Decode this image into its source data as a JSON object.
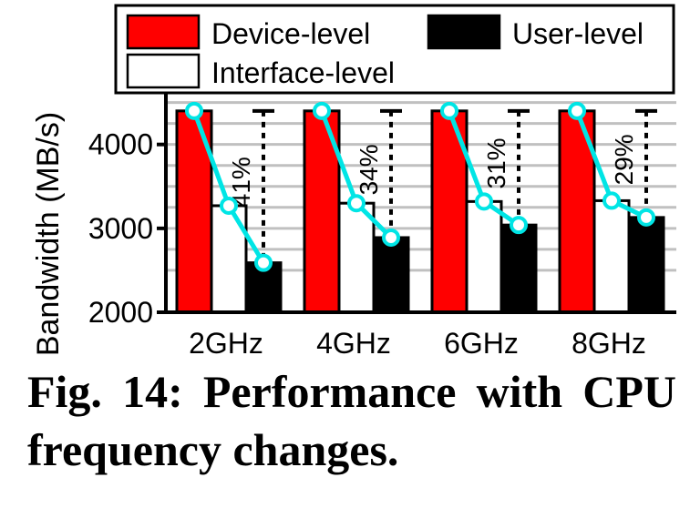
{
  "chart_data": {
    "type": "bar",
    "categories": [
      "2GHz",
      "4GHz",
      "6GHz",
      "8GHz"
    ],
    "series": [
      {
        "name": "Device-level",
        "values": [
          4400,
          4400,
          4400,
          4400
        ],
        "color": "#ff0000"
      },
      {
        "name": "Interface-level",
        "values": [
          3270,
          3300,
          3320,
          3330
        ],
        "color": "#ffffff"
      },
      {
        "name": "User-level",
        "values": [
          2590,
          2890,
          3040,
          3130
        ],
        "color": "#000000"
      }
    ],
    "line_color": "#00e5e5",
    "annotations": [
      "41%",
      "34%",
      "31%",
      "29%"
    ],
    "ylabel": "Bandwidth (MB/s)",
    "yticks": [
      2000,
      3000,
      4000
    ],
    "ylim": [
      2000,
      4550
    ],
    "grid": true,
    "legend_placement": "top"
  },
  "caption": "Fig. 14: Performance with CPU frequency changes."
}
